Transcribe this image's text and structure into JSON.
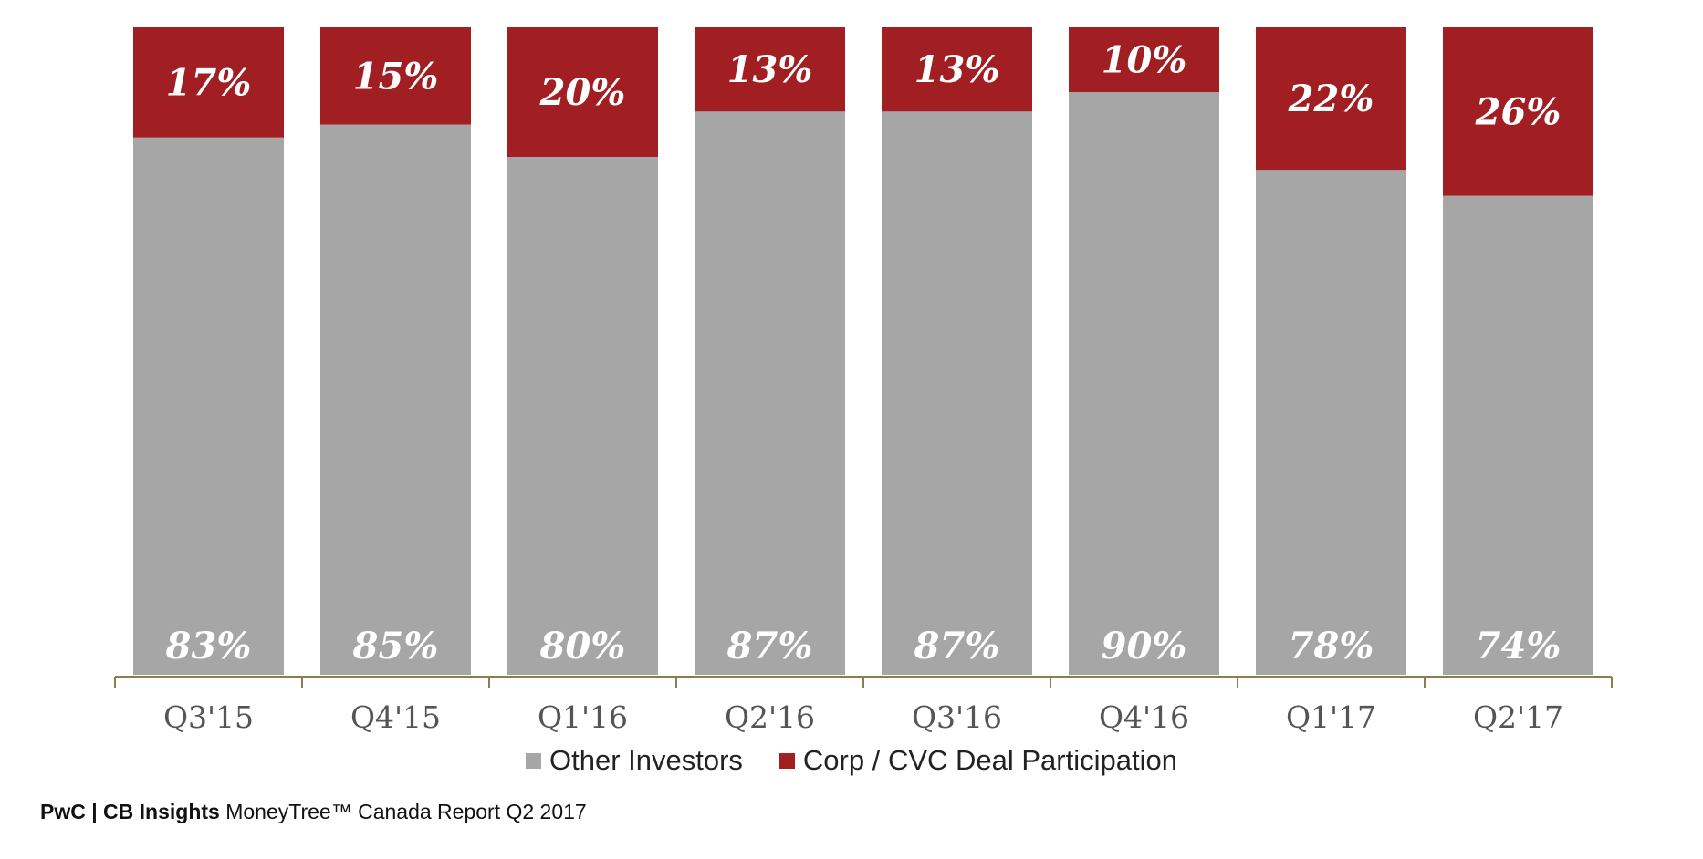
{
  "chart_data": {
    "type": "bar",
    "stacked": true,
    "categories": [
      "Q3'15",
      "Q4'15",
      "Q1'16",
      "Q2'16",
      "Q3'16",
      "Q4'16",
      "Q1'17",
      "Q2'17"
    ],
    "series": [
      {
        "name": "Other Investors",
        "color": "#a6a6a6",
        "values": [
          83,
          85,
          80,
          87,
          87,
          90,
          78,
          74
        ]
      },
      {
        "name": "Corp / CVC Deal Participation",
        "color": "#a11f23",
        "values": [
          17,
          15,
          20,
          13,
          13,
          10,
          22,
          26
        ]
      }
    ],
    "data_labels": {
      "Other Investors": [
        "83%",
        "85%",
        "80%",
        "87%",
        "87%",
        "90%",
        "78%",
        "74%"
      ],
      "Corp / CVC Deal Participation": [
        "17%",
        "15%",
        "20%",
        "13%",
        "13%",
        "10%",
        "22%",
        "26%"
      ]
    },
    "ylim": [
      0,
      100
    ],
    "grid": false,
    "legend_position": "bottom",
    "axis_color": "#8c7d4f"
  },
  "legend": {
    "other_label": "Other Investors",
    "corp_label": "Corp / CVC Deal Participation"
  },
  "footer": {
    "brand": "PwC | CB Insights",
    "report": "MoneyTree™ Canada Report Q2 2017"
  }
}
